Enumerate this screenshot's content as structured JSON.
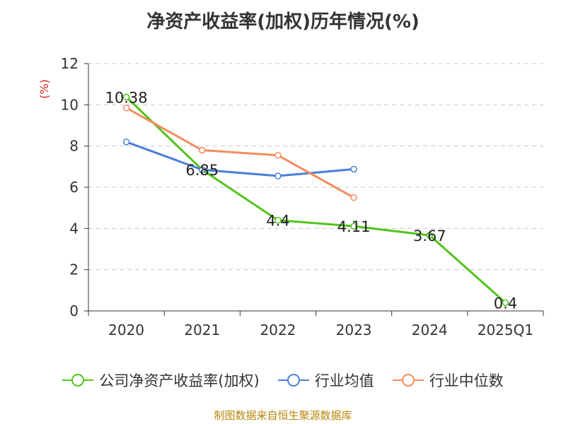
{
  "chart_data": {
    "type": "line",
    "title": "净资产收益率(加权)历年情况(%)",
    "ylabel": "(%)",
    "categories": [
      "2020",
      "2021",
      "2022",
      "2023",
      "2024",
      "2025Q1"
    ],
    "ylim": [
      0,
      12
    ],
    "yticks": [
      0,
      2,
      4,
      6,
      8,
      10,
      12
    ],
    "grid": true,
    "legend_position": "bottom",
    "series": [
      {
        "name": "公司净资产收益率(加权)",
        "color": "#52c41a",
        "values": [
          10.38,
          6.85,
          4.4,
          4.11,
          3.67,
          0.4
        ],
        "labels": [
          "10.38",
          "6.85",
          "4.4",
          "4.11",
          "3.67",
          "0.4"
        ]
      },
      {
        "name": "行业均值",
        "color": "#4a7fd8",
        "values": [
          8.2,
          6.85,
          6.55,
          6.88,
          null,
          null
        ]
      },
      {
        "name": "行业中位数",
        "color": "#f58c5c",
        "values": [
          9.85,
          7.8,
          7.55,
          5.5,
          null,
          null
        ]
      }
    ]
  },
  "footer": "制图数据来自恒生聚源数据库"
}
